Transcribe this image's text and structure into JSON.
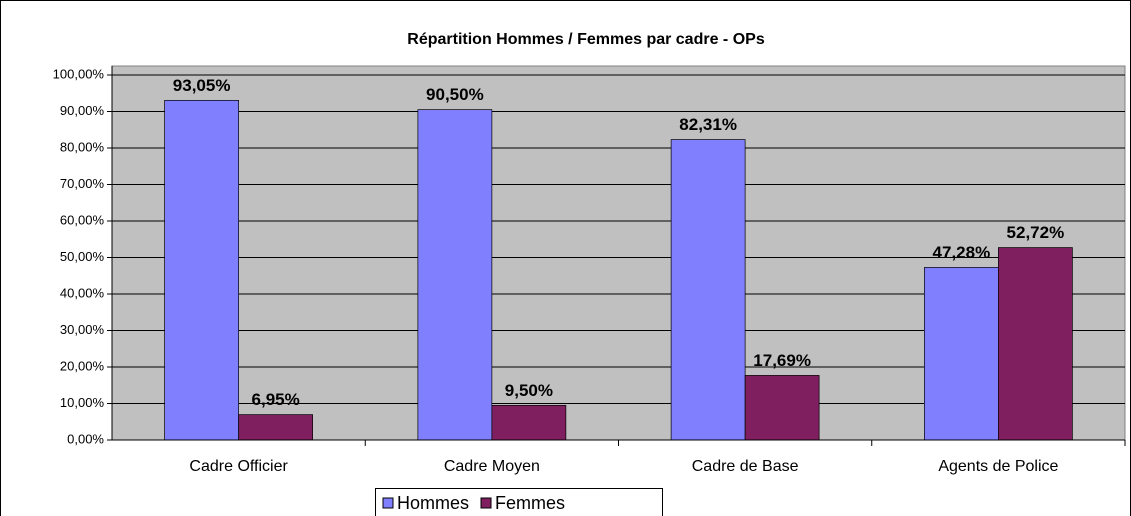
{
  "chart_data": {
    "type": "bar",
    "title": "Répartition Hommes / Femmes par cadre - OPs",
    "categories": [
      "Cadre Officier",
      "Cadre Moyen",
      "Cadre de Base",
      "Agents de Police"
    ],
    "series": [
      {
        "name": "Hommes",
        "color": "#8080ff",
        "values": [
          93.05,
          90.5,
          82.31,
          47.28
        ],
        "value_labels": [
          "93,05%",
          "90,50%",
          "82,31%",
          "47,28%"
        ]
      },
      {
        "name": "Femmes",
        "color": "#7f1f5f",
        "values": [
          6.95,
          9.5,
          17.69,
          52.72
        ],
        "value_labels": [
          "6,95%",
          "9,50%",
          "17,69%",
          "52,72%"
        ]
      }
    ],
    "ylim": [
      0,
      100
    ],
    "yticks": [
      {
        "value": 0,
        "label": "0,00%"
      },
      {
        "value": 10,
        "label": "10,00%"
      },
      {
        "value": 20,
        "label": "20,00%"
      },
      {
        "value": 30,
        "label": "30,00%"
      },
      {
        "value": 40,
        "label": "40,00%"
      },
      {
        "value": 50,
        "label": "50,00%"
      },
      {
        "value": 60,
        "label": "60,00%"
      },
      {
        "value": 70,
        "label": "70,00%"
      },
      {
        "value": 80,
        "label": "80,00%"
      },
      {
        "value": 90,
        "label": "90,00%"
      },
      {
        "value": 100,
        "label": "100,00%"
      }
    ],
    "grid": true,
    "legend": "bottom"
  }
}
